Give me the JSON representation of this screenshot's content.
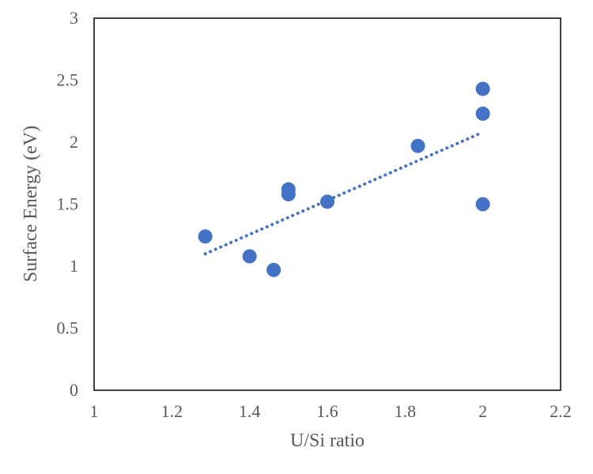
{
  "chart_data": {
    "type": "scatter",
    "title": "",
    "xlabel": "U/Si ratio",
    "ylabel": "Surface Energy (eV)",
    "xlim": [
      1,
      2.2
    ],
    "ylim": [
      0,
      3
    ],
    "x_ticks": [
      1,
      1.2,
      1.4,
      1.6,
      1.8,
      2,
      2.2
    ],
    "x_tick_labels": [
      "1",
      "1.2",
      "1.4",
      "1.6",
      "1.8",
      "2",
      "2.2"
    ],
    "y_ticks": [
      0,
      0.5,
      1,
      1.5,
      2,
      2.5,
      3
    ],
    "y_tick_labels": [
      "0",
      "0.5",
      "1",
      "1.5",
      "2",
      "2.5",
      "3"
    ],
    "grid": false,
    "legend": "none",
    "series": [
      {
        "color": "#4472C4",
        "points": [
          {
            "x": 1.286,
            "y": 1.24
          },
          {
            "x": 1.4,
            "y": 1.08
          },
          {
            "x": 1.462,
            "y": 0.97
          },
          {
            "x": 1.5,
            "y": 1.62
          },
          {
            "x": 1.5,
            "y": 1.58
          },
          {
            "x": 1.6,
            "y": 1.52
          },
          {
            "x": 1.833,
            "y": 1.97
          },
          {
            "x": 2.0,
            "y": 2.43
          },
          {
            "x": 2.0,
            "y": 2.23
          },
          {
            "x": 2.0,
            "y": 1.5
          }
        ],
        "trendline": {
          "type": "linear",
          "style": "dotted",
          "color": "#4472C4",
          "start": {
            "x": 1.286,
            "y": 1.1
          },
          "end": {
            "x": 2.0,
            "y": 2.08
          }
        }
      }
    ]
  }
}
